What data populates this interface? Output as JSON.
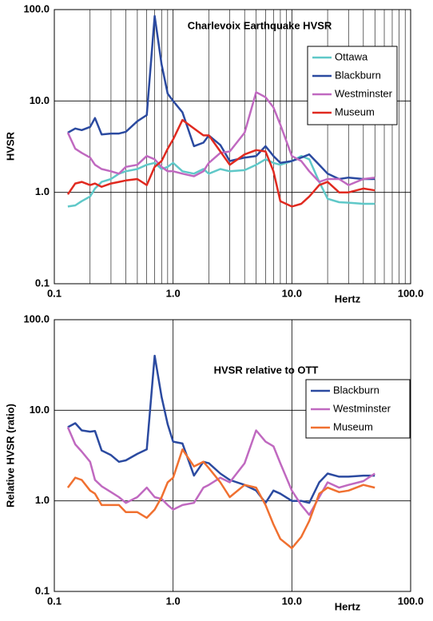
{
  "chart_data": [
    {
      "type": "line",
      "title": "Charlevoix Earthquake HVSR",
      "xlabel": "Hertz",
      "ylabel": "HVSR",
      "log_x": true,
      "log_y": true,
      "grid": true,
      "minor_x_grid": true,
      "legend": "upper right",
      "xlim": [
        0.1,
        100
      ],
      "ylim": [
        0.1,
        100
      ],
      "xticks": [
        0.1,
        {
          "value": 1,
          "label": "1.0"
        },
        {
          "value": 10,
          "label": "10.0"
        },
        {
          "value": 100,
          "label": "100.0"
        }
      ],
      "yticks": [
        0.1,
        {
          "value": 1,
          "label": "1.0"
        },
        {
          "value": 10,
          "label": "10.0"
        },
        {
          "value": 100,
          "label": "100.0"
        }
      ],
      "x": [
        0.13,
        0.15,
        0.17,
        0.2,
        0.22,
        0.25,
        0.3,
        0.35,
        0.4,
        0.5,
        0.6,
        0.7,
        0.8,
        0.9,
        1.0,
        1.2,
        1.5,
        1.8,
        2.0,
        2.5,
        3.0,
        4.0,
        5.0,
        6.0,
        7.0,
        8.0,
        10,
        12,
        14,
        17,
        20,
        25,
        30,
        40,
        50
      ],
      "series": [
        {
          "name": "Ottawa",
          "color": "#5fc8c8",
          "values": [
            0.7,
            0.72,
            0.8,
            0.9,
            1.1,
            1.3,
            1.4,
            1.6,
            1.7,
            1.8,
            2.0,
            2.1,
            1.8,
            1.9,
            2.1,
            1.7,
            1.6,
            1.8,
            1.6,
            1.8,
            1.7,
            1.75,
            2.0,
            2.3,
            2.1,
            2.0,
            2.2,
            2.5,
            2.3,
            1.3,
            0.85,
            0.78,
            0.77,
            0.75,
            0.75
          ]
        },
        {
          "name": "Blackburn",
          "color": "#2b4aa0",
          "values": [
            4.5,
            5,
            4.8,
            5.2,
            6.5,
            4.3,
            4.4,
            4.4,
            4.6,
            6,
            7,
            85,
            25,
            12,
            10,
            7.5,
            3.2,
            3.5,
            4.2,
            3.3,
            2.2,
            2.4,
            2.5,
            3.2,
            2.5,
            2.1,
            2.2,
            2.4,
            2.6,
            2,
            1.6,
            1.4,
            1.45,
            1.4,
            1.4
          ]
        },
        {
          "name": "Westminster",
          "color": "#c069c0",
          "values": [
            4.5,
            3,
            2.7,
            2.4,
            2.0,
            1.8,
            1.7,
            1.6,
            1.9,
            2.0,
            2.5,
            2.3,
            1.9,
            1.7,
            1.7,
            1.6,
            1.5,
            1.7,
            2.1,
            2.7,
            2.8,
            4.5,
            12.5,
            11,
            8.5,
            5.5,
            2.5,
            2.2,
            1.7,
            1.3,
            1.4,
            1.4,
            1.2,
            1.4,
            1.45
          ]
        },
        {
          "name": "Museum",
          "color": "#e02a20",
          "values": [
            0.95,
            1.25,
            1.3,
            1.2,
            1.25,
            1.15,
            1.25,
            1.3,
            1.35,
            1.4,
            1.2,
            1.9,
            2.2,
            3.0,
            3.8,
            6.2,
            5,
            4.2,
            4.2,
            2.8,
            2.0,
            2.6,
            2.9,
            2.8,
            1.7,
            0.8,
            0.7,
            0.75,
            0.9,
            1.2,
            1.3,
            1.0,
            1.0,
            1.1,
            1.05
          ]
        }
      ]
    },
    {
      "type": "line",
      "title": "HVSR relative to OTT",
      "xlabel": "Hertz",
      "ylabel": "Relative HVSR (ratio)",
      "log_x": true,
      "log_y": true,
      "grid": true,
      "minor_x_grid": false,
      "legend": "right",
      "xlim": [
        0.1,
        100
      ],
      "ylim": [
        0.1,
        100
      ],
      "xticks": [
        0.1,
        {
          "value": 1,
          "label": "1.0"
        },
        {
          "value": 10,
          "label": "10.0"
        },
        {
          "value": 100,
          "label": "100.0"
        }
      ],
      "yticks": [
        0.1,
        {
          "value": 1,
          "label": "1.0"
        },
        {
          "value": 10,
          "label": "10.0"
        },
        {
          "value": 100,
          "label": "100.0"
        }
      ],
      "x": [
        0.13,
        0.15,
        0.17,
        0.2,
        0.22,
        0.25,
        0.3,
        0.35,
        0.4,
        0.5,
        0.6,
        0.7,
        0.8,
        0.9,
        1.0,
        1.2,
        1.5,
        1.8,
        2.0,
        2.5,
        3.0,
        4.0,
        5.0,
        6.0,
        7.0,
        8.0,
        10,
        12,
        14,
        17,
        20,
        25,
        30,
        40,
        50
      ],
      "series": [
        {
          "name": "Blackburn",
          "color": "#2b4aa0",
          "values": [
            6.5,
            7.2,
            6,
            5.8,
            5.9,
            3.6,
            3.2,
            2.7,
            2.8,
            3.3,
            3.7,
            40,
            14,
            7,
            4.5,
            4.3,
            1.9,
            2.7,
            2.6,
            2.0,
            1.7,
            1.5,
            1.3,
            0.95,
            1.3,
            1.2,
            1.0,
            1.0,
            0.95,
            1.6,
            2.0,
            1.85,
            1.85,
            1.9,
            1.9
          ]
        },
        {
          "name": "Westminster",
          "color": "#c069c0",
          "values": [
            6.5,
            4.2,
            3.5,
            2.7,
            1.7,
            1.45,
            1.25,
            1.1,
            0.95,
            1.1,
            1.4,
            1.1,
            1.05,
            0.9,
            0.8,
            0.9,
            0.95,
            1.4,
            1.5,
            1.8,
            1.6,
            2.6,
            6.0,
            4.5,
            4.0,
            2.6,
            1.3,
            0.9,
            0.7,
            1.1,
            1.6,
            1.4,
            1.5,
            1.65,
            2.0
          ]
        },
        {
          "name": "Museum",
          "color": "#f07030",
          "values": [
            1.4,
            1.8,
            1.7,
            1.3,
            1.2,
            0.9,
            0.9,
            0.9,
            0.75,
            0.75,
            0.65,
            0.8,
            1.1,
            1.6,
            1.8,
            3.7,
            2.4,
            2.7,
            2.3,
            1.6,
            1.1,
            1.5,
            1.4,
            0.9,
            0.55,
            0.38,
            0.3,
            0.4,
            0.6,
            1.2,
            1.4,
            1.25,
            1.3,
            1.5,
            1.4
          ]
        }
      ]
    }
  ]
}
